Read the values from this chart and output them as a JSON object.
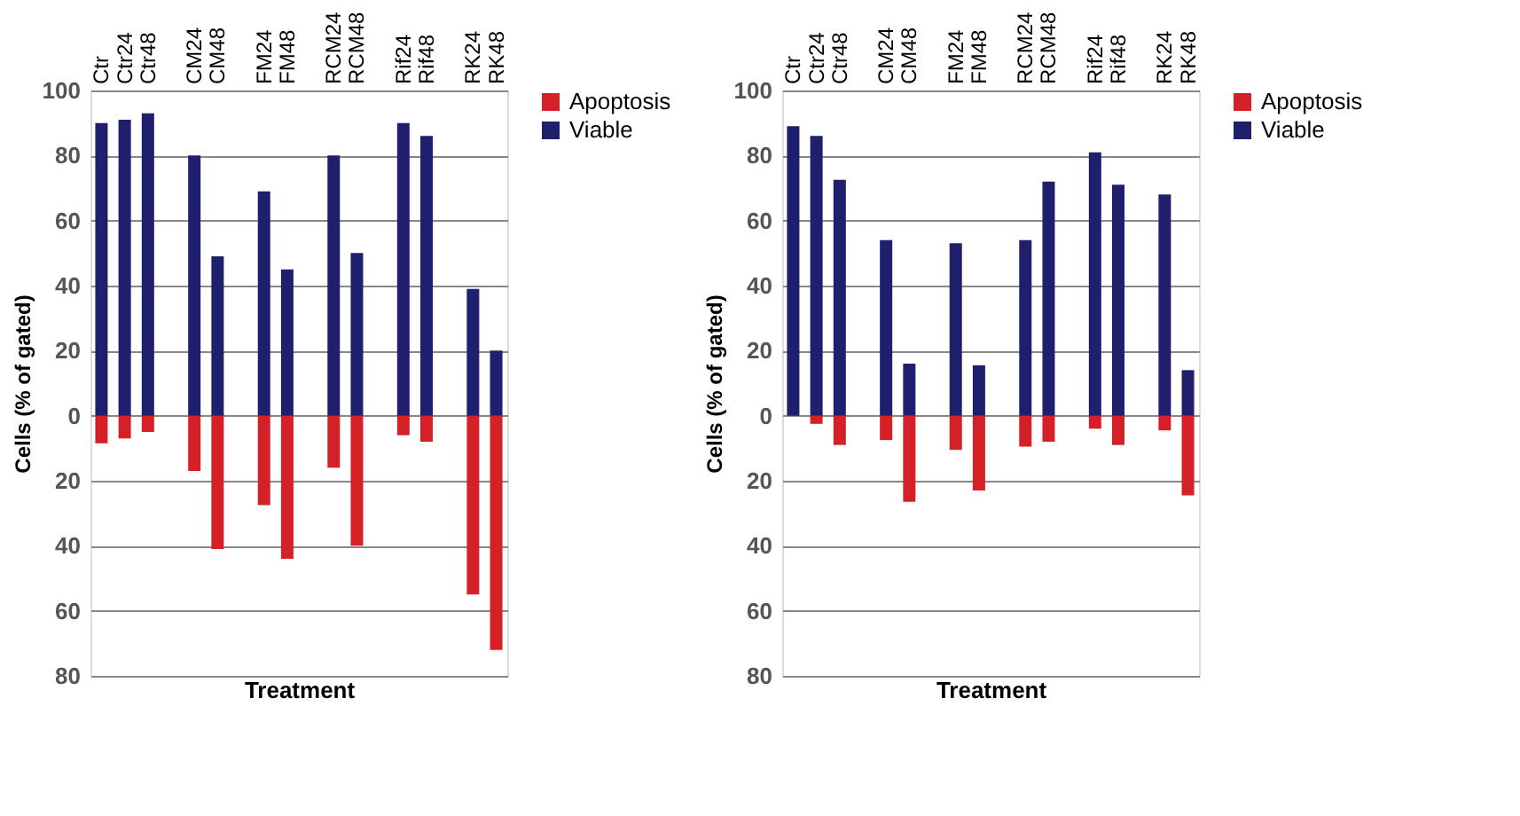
{
  "chart_data": [
    {
      "type": "bar",
      "stacked": true,
      "xlabel": "Treatment",
      "ylabel": "Cells (% of gated)",
      "categories": [
        "Ctr",
        "Ctr24",
        "Ctr48",
        null,
        "CM24",
        "CM48",
        null,
        "FM24",
        "FM48",
        null,
        "RCM24",
        "RCM48",
        null,
        "Rif24",
        "Rif48",
        null,
        "RK24",
        "RK48"
      ],
      "series": [
        {
          "name": "Apoptosis",
          "color": "#d42027",
          "values": [
            -8.5,
            -7,
            -5,
            null,
            -17,
            -41,
            null,
            -27.5,
            -44,
            null,
            -16,
            -40,
            null,
            -6,
            -8,
            null,
            -55,
            -72
          ]
        },
        {
          "name": "Viable",
          "color": "#1f1f6e",
          "values": [
            90,
            91,
            93,
            null,
            80,
            49,
            null,
            69,
            45,
            null,
            80,
            50,
            null,
            90,
            86,
            null,
            39,
            20
          ]
        }
      ],
      "ylim": [
        -80,
        100
      ],
      "yticks": [
        {
          "value": -80,
          "label": "80"
        },
        {
          "value": -60,
          "label": "60"
        },
        {
          "value": -40,
          "label": "40"
        },
        {
          "value": -20,
          "label": "20"
        },
        0,
        20,
        40,
        60,
        80,
        100
      ],
      "grid": "y",
      "legend": "right"
    },
    {
      "type": "bar",
      "stacked": true,
      "xlabel": "Treatment",
      "ylabel": "Cells (% of gated)",
      "categories": [
        "Ctr",
        "Ctr24",
        "Ctr48",
        null,
        "CM24",
        "CM48",
        null,
        "FM24",
        "FM48",
        null,
        "RCM24",
        "RCM48",
        null,
        "Rif24",
        "Rif48",
        null,
        "RK24",
        "RK48"
      ],
      "series": [
        {
          "name": "Apoptosis",
          "color": "#d42027",
          "values": [
            null,
            -2.5,
            -9,
            null,
            -7.5,
            -26.5,
            null,
            -10.5,
            -23,
            null,
            -9.5,
            -8,
            null,
            -4,
            -9,
            null,
            -4.5,
            -24.5
          ]
        },
        {
          "name": "Viable",
          "color": "#1f1f6e",
          "values": [
            89,
            86,
            72.5,
            null,
            54,
            16,
            null,
            53,
            15.5,
            null,
            54,
            72,
            null,
            81,
            71,
            null,
            68,
            14
          ]
        }
      ],
      "ylim": [
        -80,
        100
      ],
      "yticks": [
        {
          "value": -80,
          "label": "80"
        },
        {
          "value": -60,
          "label": "60"
        },
        {
          "value": -40,
          "label": "40"
        },
        {
          "value": -20,
          "label": "20"
        },
        0,
        20,
        40,
        60,
        80,
        100
      ],
      "grid": "y",
      "legend": "right"
    }
  ]
}
